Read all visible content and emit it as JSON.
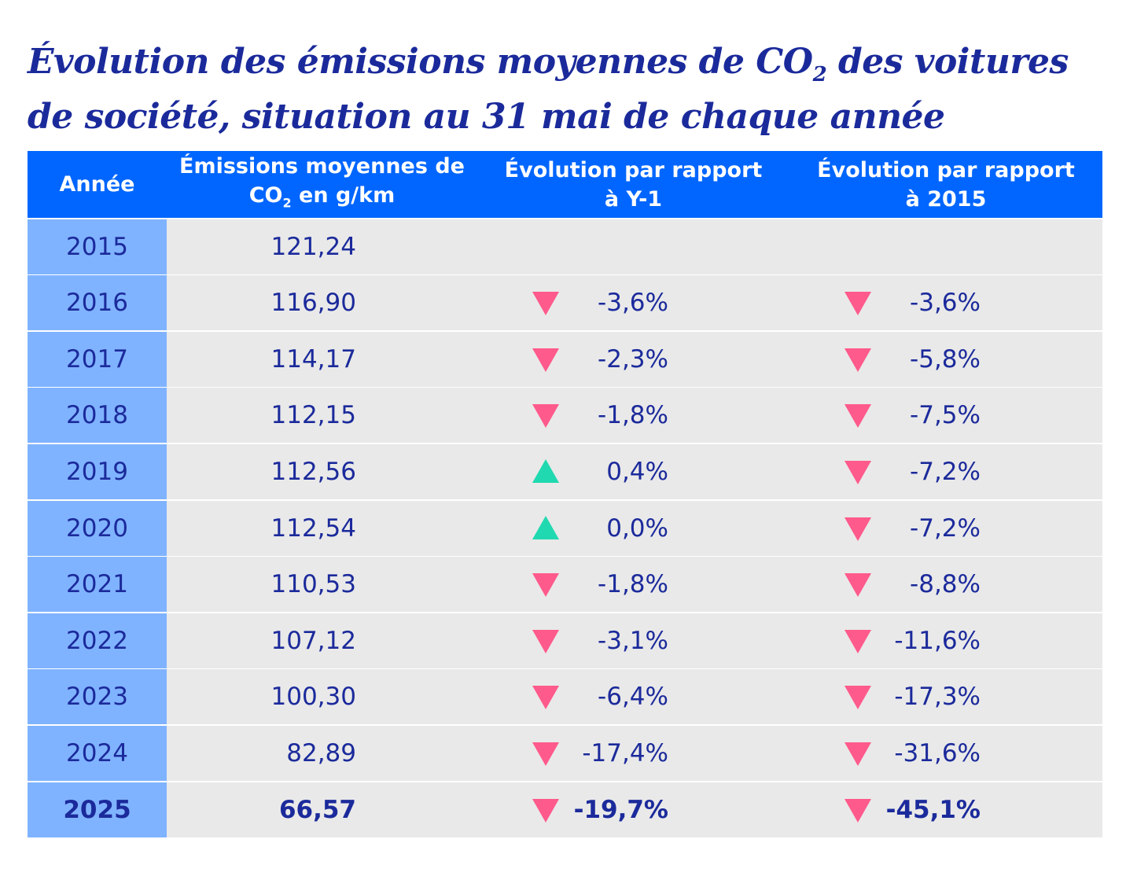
{
  "title": {
    "line1_pre": "Évolution des émissions moyennes de CO",
    "sub": "2",
    "line1_post": " des voitures",
    "line2": "de société, situation au 31 mai de chaque année"
  },
  "colors": {
    "header": "#0066ff",
    "year_column": "#80b3ff",
    "body": "#e9e9e9",
    "text": "#1b2a9b",
    "decrease": "#ff5a8c",
    "increase": "#20d9b0"
  },
  "chart_data": {
    "type": "table",
    "columns": [
      "Année",
      "Émissions moyennes de CO₂ en g/km",
      "Évolution par rapport à Y-1",
      "Évolution par rapport à 2015"
    ],
    "headers": {
      "year": "Année",
      "emissions_a": "Émissions moyennes de",
      "emissions_b_pre": "CO",
      "emissions_b_sub": "2",
      "emissions_b_post": " en g/km",
      "yoy_a": "Évolution par rapport",
      "yoy_b": "à Y-1",
      "base_a": "Évolution par rapport",
      "base_b": "à 2015"
    },
    "rows": [
      {
        "year": "2015",
        "emissions": "121,24",
        "yoy": "",
        "yoy_trend": "",
        "vs2015": "",
        "vs2015_trend": ""
      },
      {
        "year": "2016",
        "emissions": "116,90",
        "yoy": "-3,6%",
        "yoy_trend": "down",
        "vs2015": "-3,6%",
        "vs2015_trend": "down"
      },
      {
        "year": "2017",
        "emissions": "114,17",
        "yoy": "-2,3%",
        "yoy_trend": "down",
        "vs2015": "-5,8%",
        "vs2015_trend": "down"
      },
      {
        "year": "2018",
        "emissions": "112,15",
        "yoy": "-1,8%",
        "yoy_trend": "down",
        "vs2015": "-7,5%",
        "vs2015_trend": "down"
      },
      {
        "year": "2019",
        "emissions": "112,56",
        "yoy": "0,4%",
        "yoy_trend": "up",
        "vs2015": "-7,2%",
        "vs2015_trend": "down"
      },
      {
        "year": "2020",
        "emissions": "112,54",
        "yoy": "0,0%",
        "yoy_trend": "up",
        "vs2015": "-7,2%",
        "vs2015_trend": "down"
      },
      {
        "year": "2021",
        "emissions": "110,53",
        "yoy": "-1,8%",
        "yoy_trend": "down",
        "vs2015": "-8,8%",
        "vs2015_trend": "down"
      },
      {
        "year": "2022",
        "emissions": "107,12",
        "yoy": "-3,1%",
        "yoy_trend": "down",
        "vs2015": "-11,6%",
        "vs2015_trend": "down"
      },
      {
        "year": "2023",
        "emissions": "100,30",
        "yoy": "-6,4%",
        "yoy_trend": "down",
        "vs2015": "-17,3%",
        "vs2015_trend": "down"
      },
      {
        "year": "2024",
        "emissions": "82,89",
        "yoy": "-17,4%",
        "yoy_trend": "down",
        "vs2015": "-31,6%",
        "vs2015_trend": "down"
      },
      {
        "year": "2025",
        "emissions": "66,57",
        "yoy": "-19,7%",
        "yoy_trend": "down",
        "vs2015": "-45,1%",
        "vs2015_trend": "down",
        "highlight": true
      }
    ]
  }
}
